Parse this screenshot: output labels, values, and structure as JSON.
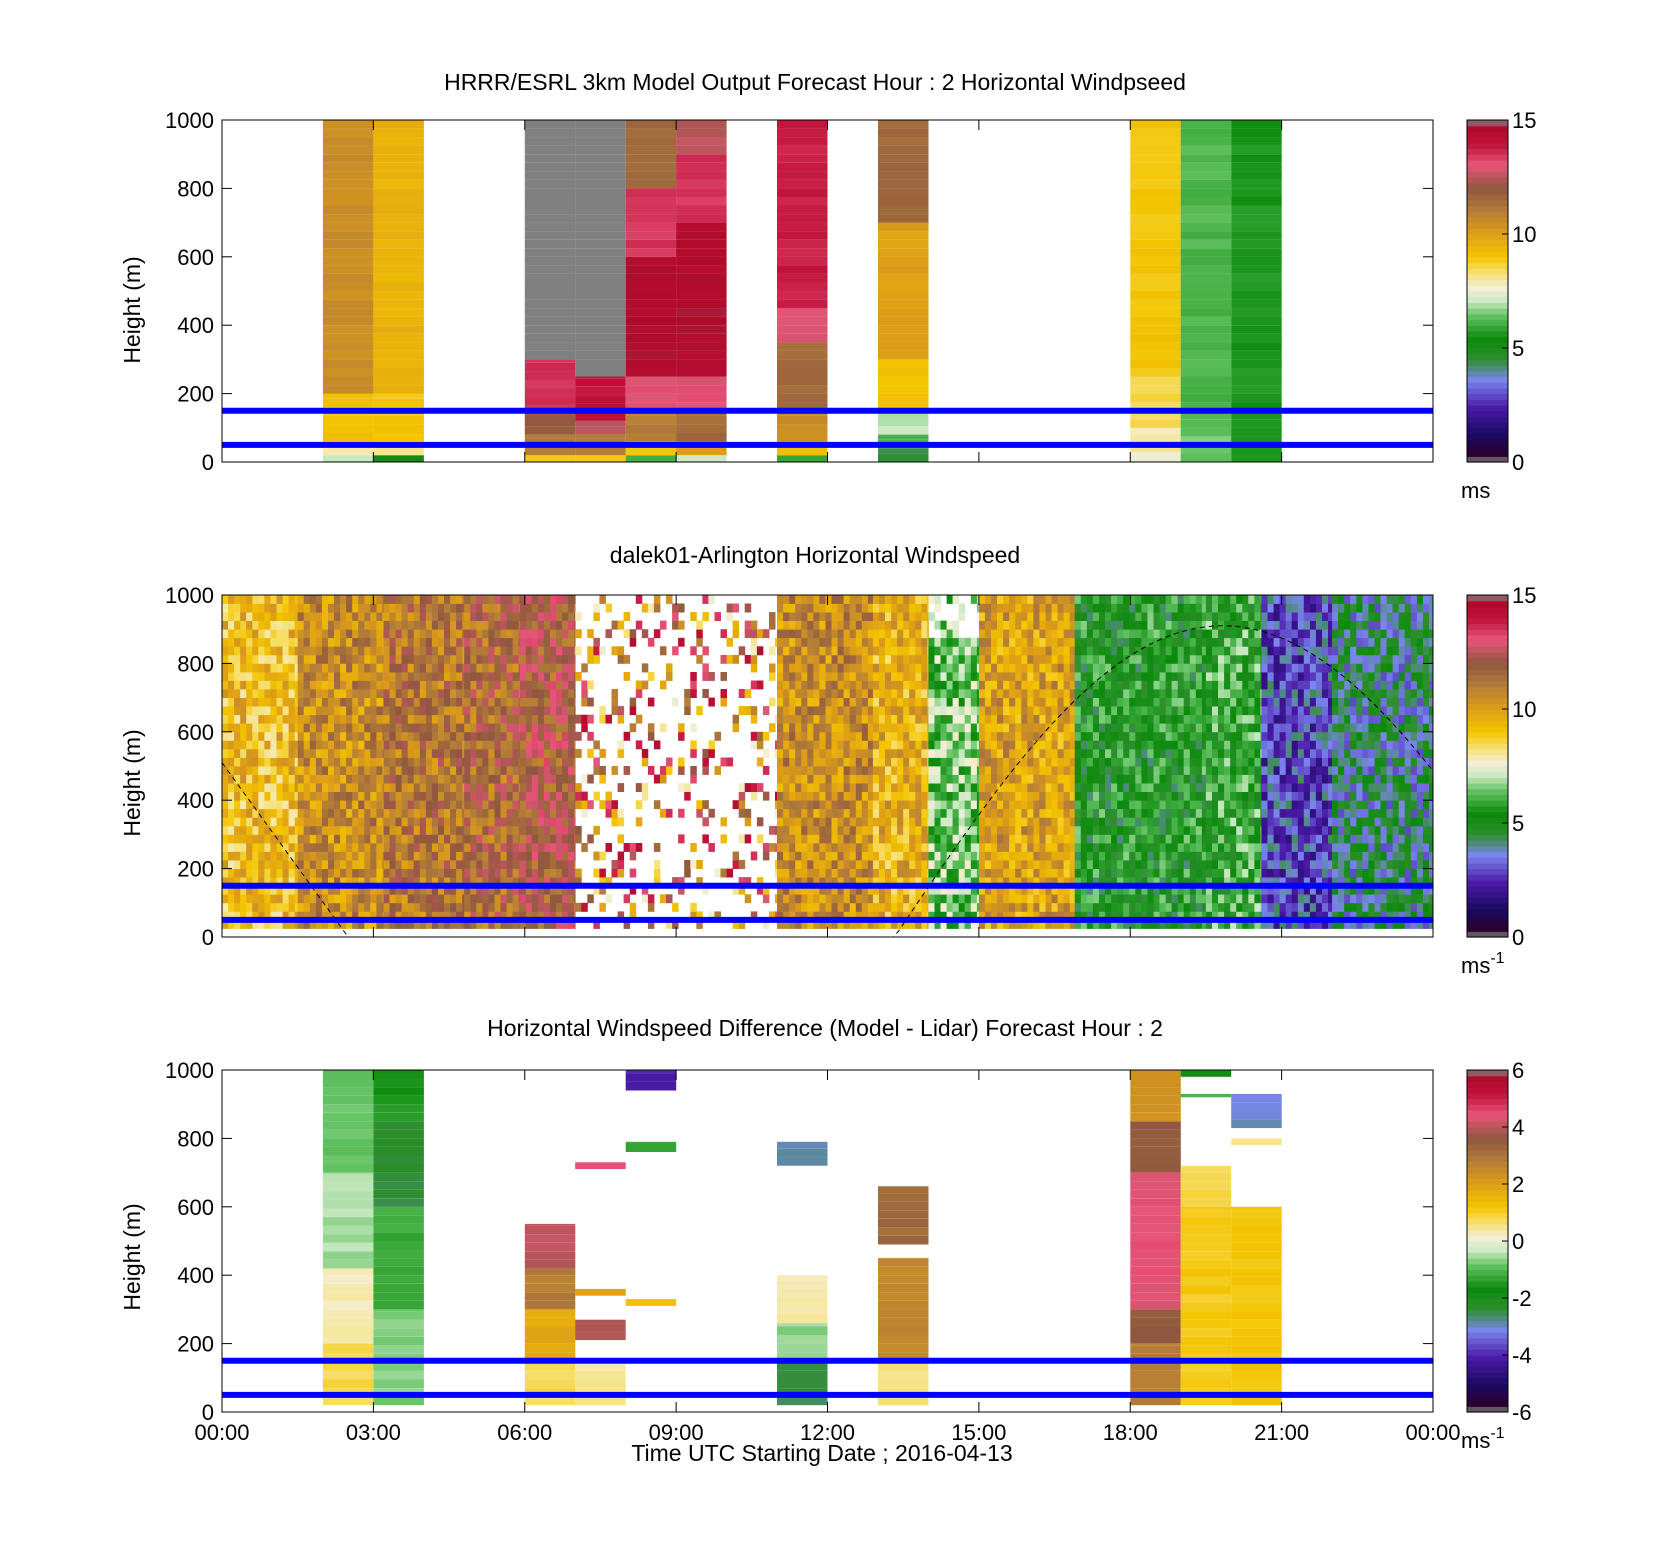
{
  "figure": {
    "x_tick_labels": [
      "00:00",
      "03:00",
      "06:00",
      "09:00",
      "12:00",
      "15:00",
      "18:00",
      "21:00",
      "00:00"
    ],
    "x_axis_label": "Time UTC  Starting Date ; 2016-04-13",
    "reference_line_heights_m": [
      50,
      150
    ],
    "reference_line_color": "#0000ff"
  },
  "chart_data": [
    {
      "type": "heatmap",
      "title": "HRRR/ESRL 3km Model Output   Forecast Hour : 2 Horizontal Windpseed",
      "ylabel": "Height (m)",
      "ylim": [
        0,
        1000
      ],
      "xlim_hours": [
        0,
        24
      ],
      "y_ticks": [
        "0",
        "200",
        "400",
        "600",
        "800",
        "1000"
      ],
      "colorbar": {
        "range": [
          0,
          15
        ],
        "ticks": [
          "0",
          "5",
          "10",
          "15"
        ],
        "unit_base": "ms",
        "unit_exp": ""
      },
      "columns": [
        {
          "t": 2,
          "segs": [
            [
              0,
              20,
              7
            ],
            [
              20,
              60,
              8
            ],
            [
              60,
              200,
              9
            ],
            [
              200,
              1000,
              10.5
            ]
          ]
        },
        {
          "t": 3,
          "segs": [
            [
              0,
              20,
              5
            ],
            [
              20,
              60,
              8
            ],
            [
              60,
              200,
              9
            ],
            [
              200,
              1000,
              9.5
            ]
          ]
        },
        {
          "t": 6,
          "segs": [
            [
              0,
              20,
              9
            ],
            [
              20,
              80,
              11
            ],
            [
              80,
              140,
              12
            ],
            [
              140,
              300,
              13.5
            ],
            [
              300,
              1000,
              15.5
            ]
          ]
        },
        {
          "t": 7,
          "segs": [
            [
              0,
              20,
              9
            ],
            [
              20,
              80,
              11
            ],
            [
              80,
              120,
              12.5
            ],
            [
              120,
              250,
              14
            ],
            [
              250,
              1000,
              15.5
            ]
          ]
        },
        {
          "t": 8,
          "segs": [
            [
              0,
              20,
              6
            ],
            [
              20,
              60,
              9
            ],
            [
              60,
              150,
              11
            ],
            [
              150,
              250,
              13
            ],
            [
              250,
              600,
              14.5
            ],
            [
              600,
              800,
              13.5
            ],
            [
              800,
              1000,
              11.5
            ]
          ]
        },
        {
          "t": 9,
          "segs": [
            [
              0,
              20,
              7
            ],
            [
              20,
              60,
              10
            ],
            [
              60,
              150,
              11.5
            ],
            [
              150,
              250,
              13
            ],
            [
              250,
              700,
              14.5
            ],
            [
              700,
              900,
              13.5
            ],
            [
              900,
              1000,
              12.5
            ]
          ]
        },
        {
          "t": 11,
          "segs": [
            [
              0,
              20,
              6
            ],
            [
              20,
              60,
              9
            ],
            [
              60,
              150,
              10.5
            ],
            [
              150,
              350,
              11.5
            ],
            [
              350,
              450,
              13
            ],
            [
              450,
              1000,
              13.8
            ]
          ]
        },
        {
          "t": 13,
          "segs": [
            [
              0,
              40,
              4.5
            ],
            [
              40,
              80,
              6
            ],
            [
              80,
              150,
              7
            ],
            [
              150,
              300,
              9
            ],
            [
              300,
              700,
              10
            ],
            [
              700,
              1000,
              11.5
            ]
          ]
        },
        {
          "t": 18,
          "segs": [
            [
              0,
              30,
              7.5
            ],
            [
              30,
              100,
              8
            ],
            [
              100,
              250,
              8.5
            ],
            [
              250,
              1000,
              9
            ]
          ]
        },
        {
          "t": 19,
          "segs": [
            [
              0,
              100,
              6.5
            ],
            [
              100,
              1000,
              6.2
            ]
          ]
        },
        {
          "t": 20,
          "segs": [
            [
              0,
              1000,
              5.6
            ]
          ]
        }
      ]
    },
    {
      "type": "heatmap",
      "title": "dalek01-Arlington  Horizontal Windspeed",
      "ylabel": "Height (m)",
      "ylim": [
        0,
        1000
      ],
      "xlim_hours": [
        0,
        24
      ],
      "y_ticks": [
        "0",
        "200",
        "400",
        "600",
        "800",
        "1000"
      ],
      "colorbar": {
        "range": [
          0,
          15
        ],
        "ticks": [
          "0",
          "5",
          "10",
          "15"
        ],
        "unit_base": "ms",
        "unit_exp": "-1"
      },
      "time_blocks_hours": [
        {
          "from": 0,
          "to": 1.5,
          "speed": 9.2
        },
        {
          "from": 1.5,
          "to": 3.2,
          "speed": 10.5
        },
        {
          "from": 3.2,
          "to": 4.8,
          "speed": 11.2
        },
        {
          "from": 4.8,
          "to": 5.9,
          "speed": 11.5
        },
        {
          "from": 5.9,
          "to": 7.0,
          "speed": 12
        },
        {
          "from": 7.0,
          "to": 11.0,
          "speed": 11,
          "sparse": true
        },
        {
          "from": 11.0,
          "to": 12.9,
          "speed": 10.5
        },
        {
          "from": 12.9,
          "to": 14.0,
          "speed": 9.5
        },
        {
          "from": 14.0,
          "to": 15.0,
          "speed": 6.5
        },
        {
          "from": 15.0,
          "to": 16.9,
          "speed": 10
        },
        {
          "from": 16.9,
          "to": 19.5,
          "speed": 5.4
        },
        {
          "from": 19.5,
          "to": 20.6,
          "speed": 5.8
        },
        {
          "from": 20.6,
          "to": 22.0,
          "speed": 3
        },
        {
          "from": 22.0,
          "to": 24.0,
          "speed": 4.2
        }
      ],
      "dashed_curve": "dashed curve from about 510 m at 00:00 down to 0 m near 02:30, rising from 0 m near 13:20 to about 910 m near 19:50, falling to about 520 m at 24:00"
    },
    {
      "type": "heatmap",
      "title": "Horizontal Windspeed Difference (Model - Lidar) Forecast Hour : 2",
      "ylabel": "Height (m)",
      "ylim": [
        0,
        1000
      ],
      "xlim_hours": [
        0,
        24
      ],
      "y_ticks": [
        "0",
        "200",
        "400",
        "600",
        "800",
        "1000"
      ],
      "colorbar": {
        "range": [
          -6,
          6
        ],
        "ticks": [
          "-6",
          "-4",
          "-2",
          "0",
          "2",
          "4",
          "6"
        ],
        "unit_base": "ms",
        "unit_exp": "-1"
      },
      "columns": [
        {
          "t": 2,
          "segs": [
            [
              20,
              200,
              0.8
            ],
            [
              200,
              420,
              0.3
            ],
            [
              420,
              700,
              -0.5
            ],
            [
              700,
              1000,
              -0.9
            ]
          ]
        },
        {
          "t": 3,
          "segs": [
            [
              20,
              300,
              -0.7
            ],
            [
              300,
              600,
              -1.2
            ],
            [
              600,
              850,
              -2.4
            ],
            [
              850,
              1000,
              -1.5
            ]
          ]
        },
        {
          "t": 6,
          "segs": [
            [
              20,
              150,
              0.8
            ],
            [
              150,
              300,
              1.8
            ],
            [
              300,
              420,
              2.8
            ],
            [
              420,
              550,
              4.0
            ]
          ]
        },
        {
          "t": 7,
          "segs": [
            [
              20,
              140,
              0.5
            ],
            [
              210,
              270,
              4
            ],
            [
              340,
              360,
              2
            ],
            [
              710,
              730,
              4.5
            ]
          ]
        },
        {
          "t": 8,
          "segs": [
            [
              310,
              330,
              1.2
            ],
            [
              760,
              790,
              -1.2
            ],
            [
              940,
              1000,
              -4
            ]
          ]
        },
        {
          "t": 11,
          "segs": [
            [
              20,
              150,
              -2.5
            ],
            [
              150,
              260,
              -0.6
            ],
            [
              260,
              400,
              0.4
            ],
            [
              720,
              790,
              -2.8
            ]
          ]
        },
        {
          "t": 13,
          "segs": [
            [
              20,
              150,
              0.5
            ],
            [
              150,
              450,
              2.6
            ],
            [
              490,
              660,
              3.2
            ]
          ]
        },
        {
          "t": 18,
          "segs": [
            [
              20,
              200,
              2.8
            ],
            [
              200,
              300,
              3.5
            ],
            [
              300,
              700,
              4.4
            ],
            [
              700,
              850,
              3.5
            ],
            [
              850,
              1000,
              2.2
            ]
          ]
        },
        {
          "t": 19,
          "segs": [
            [
              20,
              600,
              1.1
            ],
            [
              600,
              720,
              0.8
            ],
            [
              920,
              930,
              -1.2
            ],
            [
              980,
              1000,
              -2
            ]
          ]
        },
        {
          "t": 20,
          "segs": [
            [
              20,
              600,
              1.2
            ],
            [
              780,
              800,
              0.6
            ],
            [
              830,
              930,
              -3
            ]
          ]
        }
      ]
    }
  ]
}
